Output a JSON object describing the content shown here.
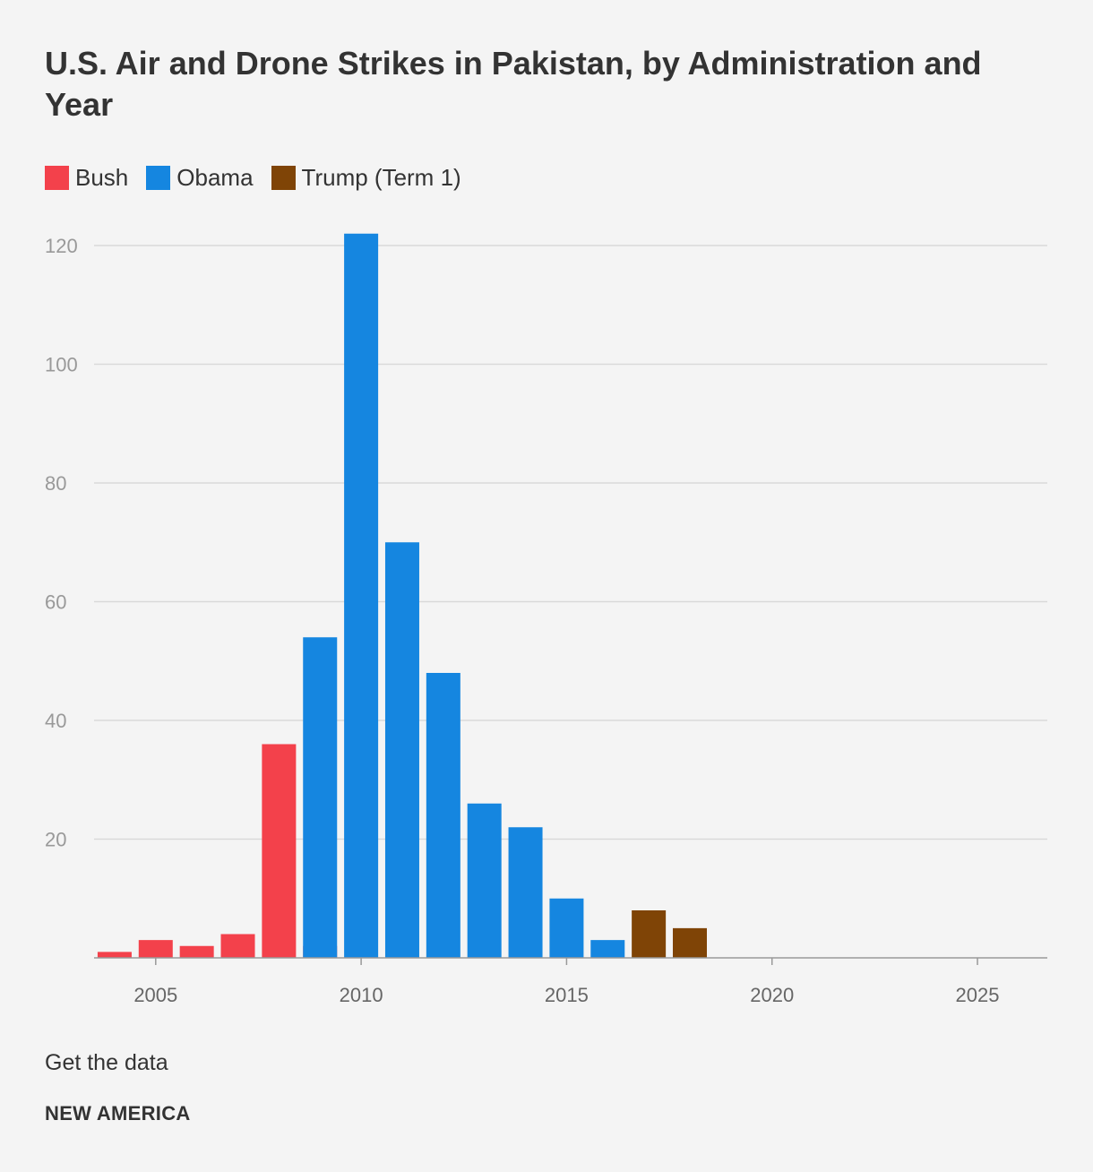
{
  "chart_data": {
    "type": "bar",
    "title": "U.S. Air and Drone Strikes in Pakistan, by Administration and Year",
    "xlabel": "",
    "ylabel": "",
    "xlim": [
      2003.5,
      2026.7
    ],
    "ylim": [
      0,
      120
    ],
    "yticks": [
      20,
      40,
      60,
      80,
      100,
      120
    ],
    "xticks": [
      2005,
      2010,
      2015,
      2020,
      2025
    ],
    "grid": true,
    "legend_position": "top-left",
    "series": [
      {
        "name": "Bush",
        "color": "#f3414b",
        "points": [
          {
            "x": 2004,
            "y": 1
          },
          {
            "x": 2005,
            "y": 3
          },
          {
            "x": 2006,
            "y": 2
          },
          {
            "x": 2007,
            "y": 4
          },
          {
            "x": 2008,
            "y": 36
          },
          {
            "x": 2009,
            "y": 2
          }
        ]
      },
      {
        "name": "Obama",
        "color": "#1586e0",
        "points": [
          {
            "x": 2009,
            "y": 54
          },
          {
            "x": 2010,
            "y": 122
          },
          {
            "x": 2011,
            "y": 70
          },
          {
            "x": 2012,
            "y": 48
          },
          {
            "x": 2013,
            "y": 26
          },
          {
            "x": 2014,
            "y": 22
          },
          {
            "x": 2015,
            "y": 10
          },
          {
            "x": 2016,
            "y": 3
          }
        ]
      },
      {
        "name": "Trump (Term 1)",
        "color": "#7f4406",
        "points": [
          {
            "x": 2017,
            "y": 8
          },
          {
            "x": 2018,
            "y": 5
          }
        ]
      }
    ]
  },
  "footer": {
    "get_data_label": "Get the data",
    "brand": "NEW AMERICA"
  }
}
